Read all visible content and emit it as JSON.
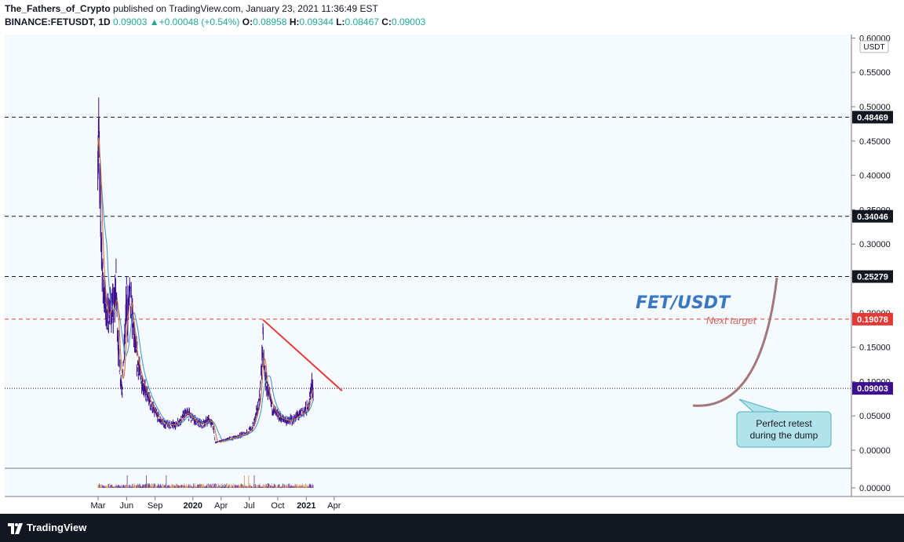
{
  "header": {
    "author": "The_Fathers_of_Crypto",
    "published": " published on TradingView.com, January 23, 2021 11:36:49 EST",
    "symbol": "BINANCE:FETUSDT, 1D",
    "last": "0.09003",
    "change": "+0.00048 (+0.54%)",
    "o_label": "O:",
    "o": "0.08958",
    "h_label": "H:",
    "h": "0.09344",
    "l_label": "L:",
    "l": "0.08467",
    "c_label": "C:",
    "c": "0.09003"
  },
  "footer": {
    "brand": "TradingView"
  },
  "colors": {
    "background": "#f4fafd",
    "candles": "#3b0f8f",
    "ma_fast": "#d3702b",
    "ma_slow": "#3b8fd6",
    "target_line": "#e53935",
    "level_line": "#131722",
    "arc": "#a3787a",
    "callout": "#b2e3ea"
  },
  "chart_data": {
    "type": "line",
    "symbol": "FET/USDT",
    "currency_label": "USDT",
    "y_ticks": [
      "0.00000",
      "0.05000",
      "0.10000",
      "0.15000",
      "0.20000",
      "0.25000",
      "0.30000",
      "0.35000",
      "0.40000",
      "0.45000",
      "0.50000",
      "0.55000",
      "0.60000"
    ],
    "ylim": [
      0,
      0.6
    ],
    "x_ticks": [
      "Mar",
      "Jun",
      "Sep",
      "2020",
      "Apr",
      "Jul",
      "Oct",
      "2021",
      "Apr"
    ],
    "volume_tick": "0.00000",
    "price_points": [
      [
        "2019-02-28",
        0.44
      ],
      [
        "2019-03-03",
        0.47
      ],
      [
        "2019-03-06",
        0.38
      ],
      [
        "2019-03-10",
        0.33
      ],
      [
        "2019-03-15",
        0.26
      ],
      [
        "2019-03-22",
        0.22
      ],
      [
        "2019-04-01",
        0.19
      ],
      [
        "2019-04-10",
        0.21
      ],
      [
        "2019-04-20",
        0.2
      ],
      [
        "2019-04-28",
        0.24
      ],
      [
        "2019-05-05",
        0.15
      ],
      [
        "2019-05-12",
        0.11
      ],
      [
        "2019-05-18",
        0.09
      ],
      [
        "2019-05-25",
        0.15
      ],
      [
        "2019-06-01",
        0.22
      ],
      [
        "2019-06-05",
        0.19
      ],
      [
        "2019-06-10",
        0.23
      ],
      [
        "2019-06-15",
        0.21
      ],
      [
        "2019-06-22",
        0.18
      ],
      [
        "2019-07-01",
        0.14
      ],
      [
        "2019-07-15",
        0.11
      ],
      [
        "2019-08-01",
        0.085
      ],
      [
        "2019-08-15",
        0.07
      ],
      [
        "2019-09-01",
        0.055
      ],
      [
        "2019-09-15",
        0.045
      ],
      [
        "2019-10-01",
        0.038
      ],
      [
        "2019-10-20",
        0.037
      ],
      [
        "2019-11-05",
        0.037
      ],
      [
        "2019-11-25",
        0.045
      ],
      [
        "2019-12-10",
        0.055
      ],
      [
        "2019-12-28",
        0.048
      ],
      [
        "2020-01-15",
        0.04
      ],
      [
        "2020-02-01",
        0.037
      ],
      [
        "2020-02-20",
        0.045
      ],
      [
        "2020-03-05",
        0.038
      ],
      [
        "2020-03-13",
        0.012
      ],
      [
        "2020-03-25",
        0.012
      ],
      [
        "2020-04-15",
        0.015
      ],
      [
        "2020-05-10",
        0.018
      ],
      [
        "2020-06-05",
        0.022
      ],
      [
        "2020-06-25",
        0.026
      ],
      [
        "2020-07-10",
        0.032
      ],
      [
        "2020-07-25",
        0.055
      ],
      [
        "2020-08-05",
        0.08
      ],
      [
        "2020-08-14",
        0.16
      ],
      [
        "2020-08-18",
        0.12
      ],
      [
        "2020-08-25",
        0.095
      ],
      [
        "2020-09-05",
        0.075
      ],
      [
        "2020-09-15",
        0.06
      ],
      [
        "2020-10-01",
        0.05
      ],
      [
        "2020-10-20",
        0.045
      ],
      [
        "2020-11-05",
        0.042
      ],
      [
        "2020-11-20",
        0.045
      ],
      [
        "2020-12-05",
        0.05
      ],
      [
        "2020-12-20",
        0.055
      ],
      [
        "2021-01-05",
        0.06
      ],
      [
        "2021-01-12",
        0.075
      ],
      [
        "2021-01-18",
        0.095
      ],
      [
        "2021-01-23",
        0.09
      ]
    ],
    "levels": [
      {
        "label": "0.48469",
        "value": 0.48469,
        "color": "#131722",
        "label_bg": "#131722"
      },
      {
        "label": "0.34046",
        "value": 0.34046,
        "color": "#131722",
        "label_bg": "#131722"
      },
      {
        "label": "0.25279",
        "value": 0.25279,
        "color": "#131722",
        "label_bg": "#131722"
      },
      {
        "label": "0.19078",
        "value": 0.19078,
        "color": "#e53935",
        "label_bg": "#e53935"
      },
      {
        "label": "0.09003",
        "value": 0.09003,
        "color": "#131722",
        "label_bg": "#3b0f8f",
        "dotted": true
      }
    ],
    "annotations": {
      "title": "FET/USDT",
      "target": "Next target",
      "callout_line1": "Perfect retest",
      "callout_line2": "during the dump"
    },
    "trendline": [
      [
        "2020-08-14",
        0.19
      ],
      [
        "2021-01-15",
        0.075
      ]
    ]
  }
}
